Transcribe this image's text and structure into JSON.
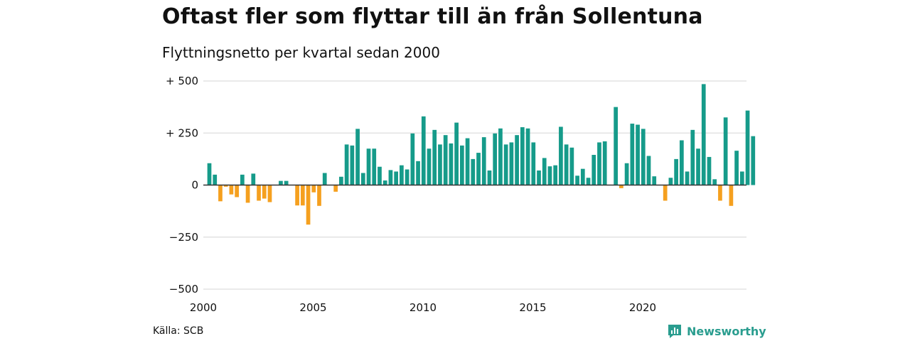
{
  "header": {
    "title": "Oftast fler som flyttar till än från Sollentuna",
    "subtitle": "Flyttningsnetto per kvartal sedan 2000"
  },
  "footer": {
    "source": "Källa: SCB",
    "brand": "Newsworthy",
    "brand_icon": "bar-chart-logo-icon"
  },
  "colors": {
    "positive": "#169b8a",
    "negative": "#f5a01f",
    "grid": "#dddddd",
    "zero_line": "#333333",
    "brand": "#2a9d8f"
  },
  "chart_data": {
    "type": "bar",
    "title": "Oftast fler som flyttar till än från Sollentuna",
    "subtitle": "Flyttningsnetto per kvartal sedan 2000",
    "x_start_year": 2000,
    "periods_per_year": 4,
    "x_tick_labels": [
      "2000",
      "2005",
      "2010",
      "2015",
      "2020"
    ],
    "y_tick_values": [
      500,
      250,
      0,
      -250,
      -500
    ],
    "y_tick_labels": [
      "+ 500",
      "+ 250",
      "0",
      "−250",
      "−500"
    ],
    "ylim": [
      -500,
      500
    ],
    "grid": true,
    "legend": "none",
    "values": [
      105,
      50,
      -78,
      -8,
      -45,
      -58,
      50,
      -85,
      55,
      -75,
      -65,
      -82,
      0,
      20,
      20,
      0,
      -98,
      -98,
      -190,
      -35,
      -100,
      58,
      0,
      -32,
      40,
      195,
      190,
      270,
      58,
      175,
      175,
      88,
      22,
      72,
      65,
      95,
      75,
      248,
      115,
      330,
      175,
      265,
      195,
      240,
      200,
      300,
      190,
      225,
      125,
      155,
      230,
      70,
      248,
      272,
      195,
      205,
      240,
      278,
      272,
      205,
      70,
      130,
      90,
      95,
      280,
      195,
      180,
      45,
      78,
      35,
      145,
      205,
      210,
      0,
      375,
      -15,
      105,
      295,
      290,
      270,
      140,
      42,
      0,
      -75,
      35,
      125,
      215,
      65,
      265,
      175,
      485,
      135,
      28,
      -75,
      325,
      -100,
      165,
      65,
      358,
      235
    ]
  }
}
